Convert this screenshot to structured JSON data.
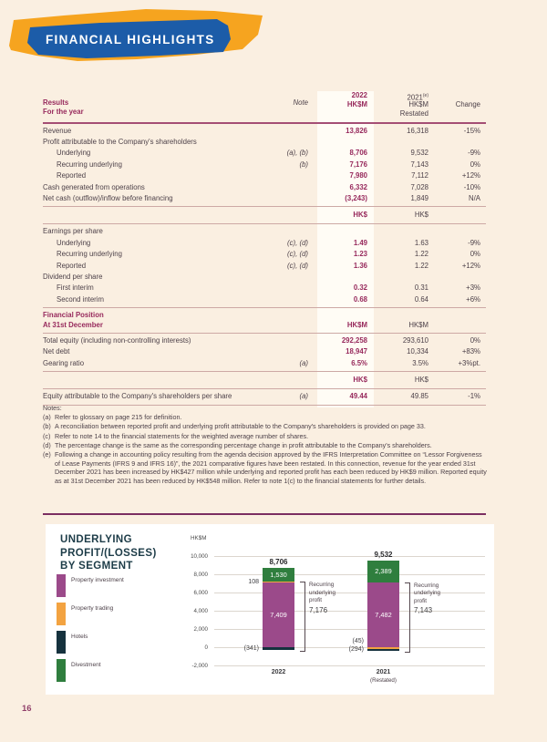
{
  "page": {
    "number": "16",
    "background": "#FAEFE1"
  },
  "banner": {
    "title": "FINANCIAL HIGHLIGHTS",
    "orange": "#F6A41F",
    "blue": "#1C5CA8"
  },
  "table": {
    "header": {
      "results_line1": "Results",
      "results_line2": "For the year",
      "note_label": "Note",
      "y2022": "2022",
      "unit_2022": "HK$M",
      "y2021": "2021",
      "y2021_sup": "(e)",
      "unit_2021": "HK$M",
      "restated": "Restated",
      "change_label": "Change"
    },
    "rows": [
      {
        "t": "row",
        "label": "Revenue",
        "v22": "13,826",
        "v21": "16,318",
        "chg": "-15%"
      },
      {
        "t": "group",
        "label": "Profit attributable to the Company's shareholders"
      },
      {
        "t": "row",
        "ind": 1,
        "label": "Underlying",
        "note": "(a), (b)",
        "v22": "8,706",
        "v21": "9,532",
        "chg": "-9%"
      },
      {
        "t": "row",
        "ind": 1,
        "label": "Recurring underlying",
        "note": "(b)",
        "v22": "7,176",
        "v21": "7,143",
        "chg": "0%"
      },
      {
        "t": "row",
        "ind": 1,
        "label": "Reported",
        "v22": "7,980",
        "v21": "7,112",
        "chg": "+12%"
      },
      {
        "t": "row",
        "label": "Cash generated from operations",
        "v22": "6,332",
        "v21": "7,028",
        "chg": "-10%"
      },
      {
        "t": "row",
        "label": "Net cash (outflow)/inflow before financing",
        "v22": "(3,243)",
        "v21": "1,849",
        "chg": "N/A"
      },
      {
        "t": "rule"
      },
      {
        "t": "units",
        "u22": "HK$",
        "u21": "HK$"
      },
      {
        "t": "rule"
      },
      {
        "t": "group",
        "label": "Earnings per share"
      },
      {
        "t": "row",
        "ind": 1,
        "label": "Underlying",
        "note": "(c), (d)",
        "v22": "1.49",
        "v21": "1.63",
        "chg": "-9%"
      },
      {
        "t": "row",
        "ind": 1,
        "label": "Recurring underlying",
        "note": "(c), (d)",
        "v22": "1.23",
        "v21": "1.22",
        "chg": "0%"
      },
      {
        "t": "row",
        "ind": 1,
        "label": "Reported",
        "note": "(c), (d)",
        "v22": "1.36",
        "v21": "1.22",
        "chg": "+12%"
      },
      {
        "t": "group",
        "label": "Dividend per share"
      },
      {
        "t": "row",
        "ind": 1,
        "label": "First interim",
        "v22": "0.32",
        "v21": "0.31",
        "chg": "+3%"
      },
      {
        "t": "row",
        "ind": 1,
        "label": "Second interim",
        "v22": "0.68",
        "v21": "0.64",
        "chg": "+6%"
      },
      {
        "t": "rule"
      },
      {
        "t": "sechead",
        "l1": "Financial Position",
        "l2": "At 31st December",
        "u22": "HK$M",
        "u21": "HK$M"
      },
      {
        "t": "rule"
      },
      {
        "t": "row",
        "label": "Total equity (including non-controlling interests)",
        "v22": "292,258",
        "v21": "293,610",
        "chg": "0%"
      },
      {
        "t": "row",
        "label": "Net debt",
        "v22": "18,947",
        "v21": "10,334",
        "chg": "+83%"
      },
      {
        "t": "row",
        "label": "Gearing ratio",
        "note": "(a)",
        "v22": "6.5%",
        "v21": "3.5%",
        "chg": "+3%pt."
      },
      {
        "t": "rule"
      },
      {
        "t": "units",
        "u22": "HK$",
        "u21": "HK$"
      },
      {
        "t": "rule"
      },
      {
        "t": "row",
        "label": "Equity attributable to the Company's shareholders per share",
        "note": "(a)",
        "v22": "49.44",
        "v21": "49.85",
        "chg": "-1%"
      },
      {
        "t": "rule"
      }
    ]
  },
  "notes": {
    "title": "Notes:",
    "items": [
      {
        "marker": "(a)",
        "text": "Refer to glossary on page 215 for definition."
      },
      {
        "marker": "(b)",
        "text": "A reconciliation between reported profit and underlying profit attributable to the Company's shareholders is provided on page 33."
      },
      {
        "marker": "(c)",
        "text": "Refer to note 14 to the financial statements for the weighted average number of shares."
      },
      {
        "marker": "(d)",
        "text": "The percentage change is the same as the corresponding percentage change in profit attributable to the Company's shareholders."
      },
      {
        "marker": "(e)",
        "text": "Following a change in accounting policy resulting from the agenda decision approved by the IFRS Interpretation Committee on “Lessor Forgiveness of Lease Payments (IFRS 9 and IFRS 16)”, the 2021 comparative figures have been restated. In this connection, revenue for the year ended 31st December 2021 has been increased by HK$427 million while underlying and reported profit has each been reduced by HK$9 million. Reported equity as at 31st December 2021 has been reduced by HK$548 million. Refer to note 1(c) to the financial statements for further details."
      }
    ]
  },
  "chart_data": {
    "type": "bar",
    "stacked": true,
    "title": "UNDERLYING PROFIT/(LOSSES) BY SEGMENT",
    "title_lines": [
      "UNDERLYING",
      "PROFIT/(LOSSES)",
      "BY SEGMENT"
    ],
    "unit_label": "HK$M",
    "legend_position": "left",
    "grid": true,
    "ylim": [
      -2000,
      10000
    ],
    "y_ticks": [
      10000,
      8000,
      6000,
      4000,
      2000,
      0,
      -2000
    ],
    "y_tick_labels": [
      "10,000",
      "8,000",
      "6,000",
      "4,000",
      "2,000",
      "0",
      "-2,000"
    ],
    "categories": [
      {
        "label": "2022",
        "sub": ""
      },
      {
        "label": "2021",
        "sub": "(Restated)"
      }
    ],
    "series": [
      {
        "name": "Property investment",
        "color": "#9B4A8A",
        "values": [
          7409,
          7482
        ]
      },
      {
        "name": "Property trading",
        "color": "#F3A341",
        "values": [
          108,
          -45
        ]
      },
      {
        "name": "Hotels",
        "color": "#16323E",
        "values": [
          -341,
          -294
        ]
      },
      {
        "name": "Divestment",
        "color": "#2F7E3E",
        "values": [
          1530,
          2389
        ]
      }
    ],
    "totals": [
      8706,
      9532
    ],
    "annotations": [
      {
        "label_lines": [
          "Recurring",
          "underlying",
          "profit"
        ],
        "value": "7,176"
      },
      {
        "label_lines": [
          "Recurring",
          "underlying",
          "profit"
        ],
        "value": "7,143"
      }
    ]
  }
}
